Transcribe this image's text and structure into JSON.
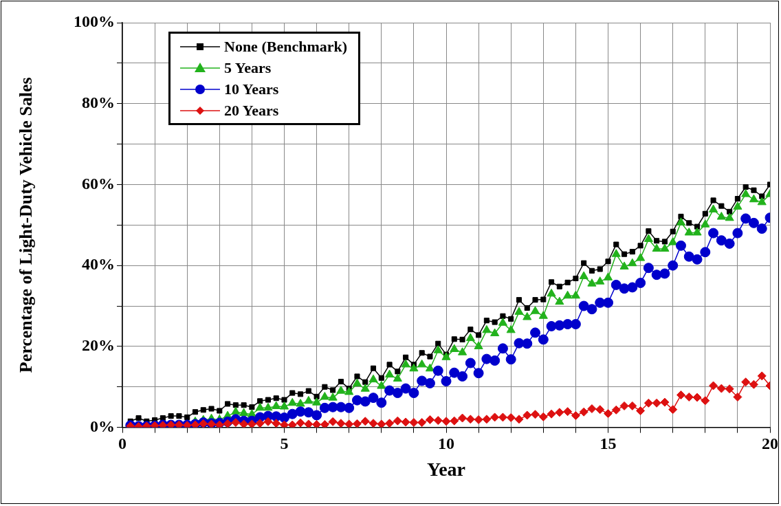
{
  "chart_data": {
    "type": "line",
    "xlabel": "Year",
    "ylabel": "Percentage of Light-Duty Vehicle Sales",
    "x": [
      0.25,
      0.5,
      0.75,
      1,
      1.25,
      1.5,
      1.75,
      2,
      2.25,
      2.5,
      2.75,
      3,
      3.25,
      3.5,
      3.75,
      4,
      4.25,
      4.5,
      4.75,
      5,
      5.25,
      5.5,
      5.75,
      6,
      6.25,
      6.5,
      6.75,
      7,
      7.25,
      7.5,
      7.75,
      8,
      8.25,
      8.5,
      8.75,
      9,
      9.25,
      9.5,
      9.75,
      10,
      10.25,
      10.5,
      10.75,
      11,
      11.25,
      11.5,
      11.75,
      12,
      12.25,
      12.5,
      12.75,
      13,
      13.25,
      13.5,
      13.75,
      14,
      14.25,
      14.5,
      14.75,
      15,
      15.25,
      15.5,
      15.75,
      16,
      16.25,
      16.5,
      16.75,
      17,
      17.25,
      17.5,
      17.75,
      18,
      18.25,
      18.5,
      18.75,
      19,
      19.25,
      19.5,
      19.75,
      20
    ],
    "xlim": [
      0,
      20
    ],
    "xticks": [
      0,
      {
        "value": 1,
        "label": null
      },
      {
        "value": 2,
        "label": null
      },
      {
        "value": 3,
        "label": null
      },
      {
        "value": 4,
        "label": null
      },
      5,
      {
        "value": 6,
        "label": null
      },
      {
        "value": 7,
        "label": null
      },
      {
        "value": 8,
        "label": null
      },
      {
        "value": 9,
        "label": null
      },
      10,
      {
        "value": 11,
        "label": null
      },
      {
        "value": 12,
        "label": null
      },
      {
        "value": 13,
        "label": null
      },
      {
        "value": 14,
        "label": null
      },
      15,
      {
        "value": 16,
        "label": null
      },
      {
        "value": 17,
        "label": null
      },
      {
        "value": 18,
        "label": null
      },
      {
        "value": 19,
        "label": null
      },
      20
    ],
    "ylim": [
      0,
      100
    ],
    "yticks": [
      {
        "value": 0,
        "label": "0%"
      },
      {
        "value": 10,
        "label": null
      },
      {
        "value": 20,
        "label": "20%"
      },
      {
        "value": 30,
        "label": null
      },
      {
        "value": 40,
        "label": "40%"
      },
      {
        "value": 50,
        "label": null
      },
      {
        "value": 60,
        "label": "60%"
      },
      {
        "value": 70,
        "label": null
      },
      {
        "value": 80,
        "label": "80%"
      },
      {
        "value": 90,
        "label": null
      },
      {
        "value": 100,
        "label": "100%"
      }
    ],
    "grid": true,
    "legend": "top left",
    "line_style": "solid",
    "series": [
      {
        "name": "None (Benchmark)",
        "color": "#000000",
        "marker": "square",
        "values": [
          1.5,
          2.3,
          1.5,
          1.8,
          2.3,
          2.8,
          2.8,
          2.5,
          3.8,
          4.3,
          4.6,
          4.1,
          5.8,
          5.5,
          5.5,
          5.0,
          6.5,
          6.8,
          7.2,
          6.8,
          8.5,
          8.2,
          9.0,
          7.6,
          10.0,
          9.2,
          11.3,
          9.6,
          12.6,
          11.2,
          14.6,
          12.2,
          15.5,
          13.8,
          17.3,
          15.5,
          18.4,
          17.5,
          20.7,
          18.0,
          21.8,
          21.7,
          24.2,
          22.8,
          26.4,
          26.0,
          27.5,
          26.8,
          31.5,
          29.5,
          31.5,
          31.6,
          35.9,
          34.8,
          35.8,
          36.8,
          40.6,
          38.7,
          39.1,
          41.0,
          45.2,
          42.8,
          43.4,
          44.9,
          48.5,
          46.1,
          45.9,
          48.4,
          52.1,
          50.5,
          49.6,
          52.8,
          56.1,
          54.7,
          53.3,
          56.5,
          59.4,
          58.6,
          57.1,
          60.0
        ]
      },
      {
        "name": "5 Years",
        "color": "#22b21c",
        "marker": "triangle",
        "values": [
          null,
          null,
          null,
          null,
          null,
          null,
          null,
          null,
          1.4,
          1.8,
          2.1,
          1.9,
          2.8,
          3.8,
          3.5,
          3.2,
          4.8,
          4.8,
          5.2,
          5.1,
          6.0,
          5.8,
          6.5,
          6.1,
          7.5,
          7.3,
          9.0,
          8.7,
          10.8,
          9.5,
          11.8,
          10.2,
          13.0,
          12.0,
          15.5,
          14.5,
          15.5,
          14.5,
          19.0,
          17.3,
          19.3,
          18.5,
          22.0,
          20.0,
          24.0,
          23.2,
          25.8,
          24.0,
          28.5,
          27.2,
          28.7,
          27.5,
          33.0,
          31.0,
          32.5,
          32.5,
          37.3,
          35.5,
          36.0,
          37.0,
          42.8,
          39.7,
          40.5,
          41.8,
          46.5,
          44.1,
          44.1,
          45.7,
          50.6,
          48.1,
          48.1,
          50.1,
          53.8,
          52.0,
          51.7,
          54.5,
          57.6,
          56.3,
          55.6,
          57.6
        ]
      },
      {
        "name": "10 Years",
        "color": "#0000cc",
        "marker": "circle",
        "values": [
          0.5,
          0.3,
          0.3,
          0.4,
          0.6,
          0.6,
          0.6,
          0.6,
          0.8,
          1.2,
          1.0,
          1.1,
          1.4,
          2.0,
          1.6,
          1.6,
          2.5,
          2.8,
          2.7,
          2.4,
          3.3,
          3.9,
          3.7,
          3.0,
          4.8,
          5.0,
          5.0,
          4.8,
          6.7,
          6.4,
          7.3,
          6.1,
          9.1,
          8.5,
          9.6,
          8.5,
          11.5,
          10.9,
          14.0,
          11.4,
          13.5,
          12.6,
          15.9,
          13.4,
          16.9,
          16.5,
          19.5,
          16.8,
          20.8,
          20.7,
          23.4,
          21.7,
          25.0,
          25.2,
          25.5,
          25.5,
          30.0,
          29.2,
          30.8,
          30.8,
          35.2,
          34.3,
          34.6,
          35.7,
          39.4,
          37.7,
          38.0,
          40.0,
          44.9,
          42.2,
          41.5,
          43.3,
          48.0,
          46.2,
          45.4,
          48.0,
          51.6,
          50.5,
          49.1,
          51.8
        ]
      },
      {
        "name": "20 Years",
        "color": "#dd1111",
        "marker": "diamond",
        "values": [
          0.3,
          0.2,
          0.3,
          0.4,
          0.5,
          0.6,
          0.6,
          0.5,
          0.6,
          0.9,
          0.8,
          0.6,
          0.9,
          1.2,
          0.8,
          0.8,
          1.0,
          1.4,
          1.0,
          0.6,
          0.6,
          1.1,
          0.8,
          0.7,
          0.7,
          1.4,
          1.0,
          0.8,
          0.9,
          1.5,
          1.0,
          0.8,
          1.0,
          1.6,
          1.3,
          1.2,
          1.2,
          1.9,
          1.7,
          1.5,
          1.6,
          2.3,
          2.0,
          1.9,
          2.0,
          2.5,
          2.5,
          2.4,
          2.0,
          3.0,
          3.2,
          2.6,
          3.3,
          3.7,
          3.9,
          2.9,
          3.8,
          4.6,
          4.4,
          3.4,
          4.3,
          5.3,
          5.3,
          4.1,
          6.0,
          6.0,
          6.2,
          4.4,
          8.0,
          7.5,
          7.4,
          6.6,
          10.3,
          9.6,
          9.5,
          7.5,
          11.2,
          10.6,
          12.7,
          10.3
        ]
      }
    ]
  }
}
